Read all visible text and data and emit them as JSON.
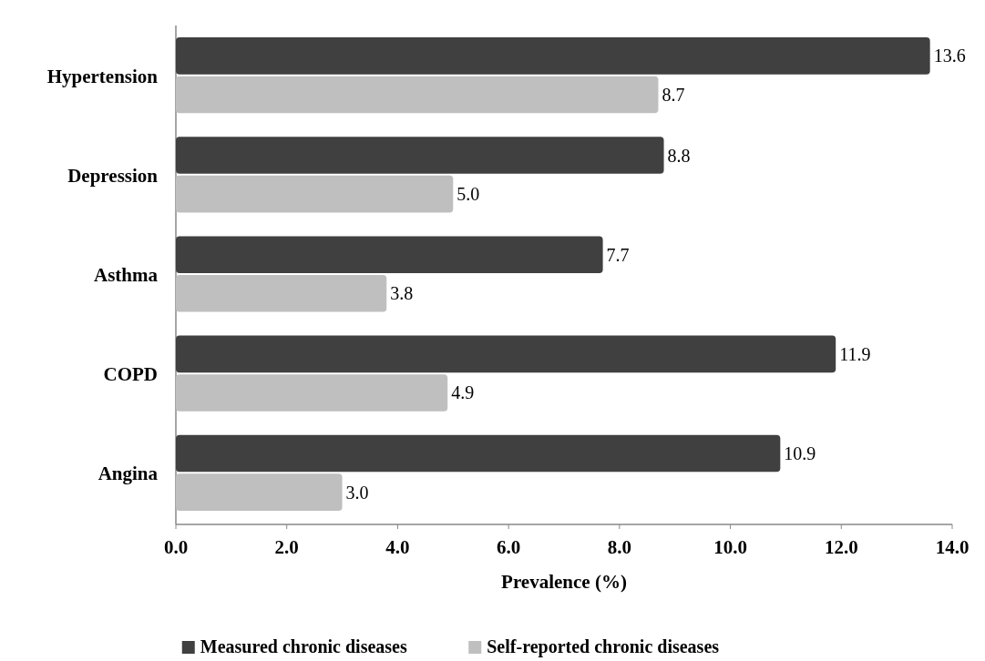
{
  "chart_data": {
    "type": "bar",
    "orientation": "horizontal",
    "xlabel": "Prevalence (%)",
    "categories": [
      "Hypertension",
      "Depression",
      "Asthma",
      "COPD",
      "Angina"
    ],
    "series": [
      {
        "name": "Measured chronic diseases",
        "color": "#404040",
        "values": [
          13.6,
          8.8,
          7.7,
          11.9,
          10.9
        ],
        "value_labels": [
          "13.6",
          "8.8",
          "7.7",
          "11.9",
          "10.9"
        ]
      },
      {
        "name": "Self-reported chronic diseases",
        "color": "#bfbfbf",
        "values": [
          8.7,
          5.0,
          3.8,
          4.9,
          3.0
        ],
        "value_labels": [
          "8.7",
          "5.0",
          "3.8",
          "4.9",
          "3.0"
        ]
      }
    ],
    "xlim": [
      0,
      14
    ],
    "xticks": [
      {
        "value": 0,
        "label": "0.0"
      },
      {
        "value": 2,
        "label": "2.0"
      },
      {
        "value": 4,
        "label": "4.0"
      },
      {
        "value": 6,
        "label": "6.0"
      },
      {
        "value": 8,
        "label": "8.0"
      },
      {
        "value": 10,
        "label": "10.0"
      },
      {
        "value": 12,
        "label": "12.0"
      },
      {
        "value": 14,
        "label": "14.0"
      }
    ],
    "grid": false,
    "legend": "bottom"
  }
}
